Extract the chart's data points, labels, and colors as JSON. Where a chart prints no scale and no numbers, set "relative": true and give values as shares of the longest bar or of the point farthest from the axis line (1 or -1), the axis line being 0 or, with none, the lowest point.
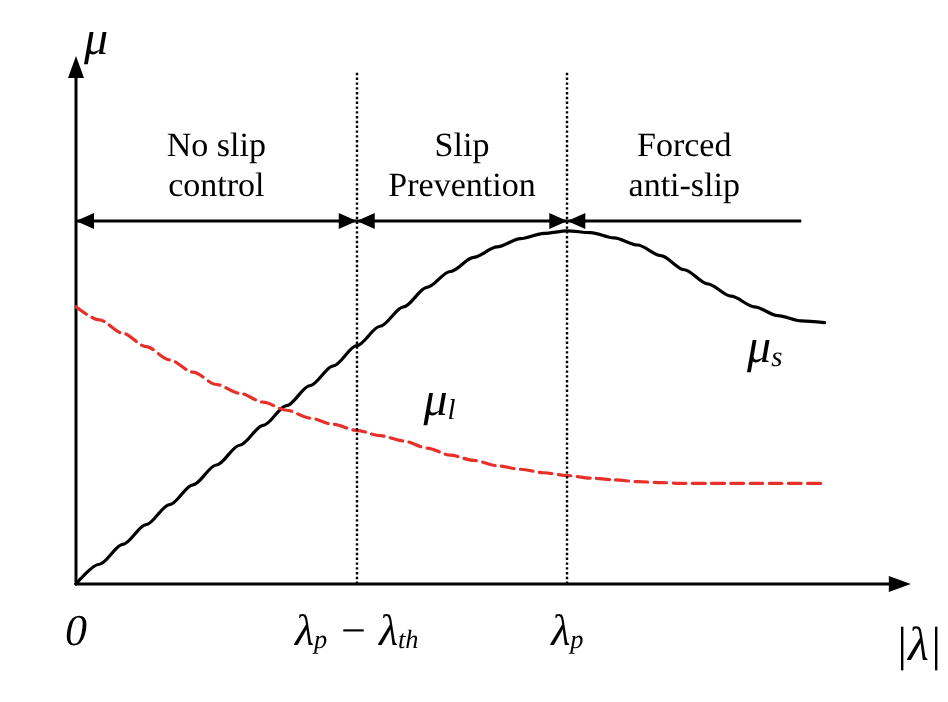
{
  "chart_data": {
    "type": "line",
    "relative": true,
    "xlabel": "|λ|",
    "ylabel": "μ",
    "categories": [
      "0",
      null,
      null,
      null,
      null,
      null,
      null,
      null,
      null,
      null,
      null,
      null,
      "λ$_{p}$ − λ$_{th}$",
      null,
      null,
      null,
      null,
      null,
      null,
      null,
      null,
      "λ$_{p}$",
      null,
      null,
      null,
      null,
      null,
      null,
      null,
      null,
      null,
      null,
      null,
      null,
      null,
      null
    ],
    "series": [
      {
        "name": "μ$_{s}$",
        "color": "#000000",
        "line_style": "solid",
        "values": [
          0,
          0.056,
          0.112,
          0.168,
          0.225,
          0.281,
          0.337,
          0.393,
          0.449,
          0.505,
          0.562,
          0.618,
          0.675,
          0.73,
          0.785,
          0.84,
          0.885,
          0.925,
          0.955,
          0.978,
          0.993,
          1.0,
          0.995,
          0.98,
          0.96,
          0.93,
          0.89,
          0.85,
          0.815,
          0.785,
          0.76,
          0.745,
          0.74,
          null,
          null,
          null
        ]
      },
      {
        "name": "μ$_{l}$",
        "color": "#e8302a",
        "line_style": "dashed",
        "values": [
          0.785,
          0.748,
          0.71,
          0.672,
          0.635,
          0.6,
          0.565,
          0.54,
          0.515,
          0.492,
          0.47,
          0.452,
          0.435,
          0.42,
          0.405,
          0.385,
          0.365,
          0.35,
          0.335,
          0.325,
          0.315,
          0.307,
          0.3,
          0.295,
          0.29,
          0.287,
          0.285,
          0.285,
          0.285,
          0.285,
          0.285,
          0.285,
          0.285,
          null,
          null,
          null
        ]
      }
    ],
    "ref_lines": [
      {
        "axis": "x",
        "value": "λ$_{p}$ − λ$_{th}$",
        "line_style": "dotted",
        "color": "#000000"
      },
      {
        "axis": "x",
        "value": "λ$_{p}$",
        "line_style": "dotted",
        "color": "#000000"
      }
    ],
    "annotations": [
      "No slip\ncontrol",
      "Slip\nPrevention",
      "Forced\nanti-slip"
    ],
    "grid": false,
    "legend": false,
    "marker": "none"
  }
}
